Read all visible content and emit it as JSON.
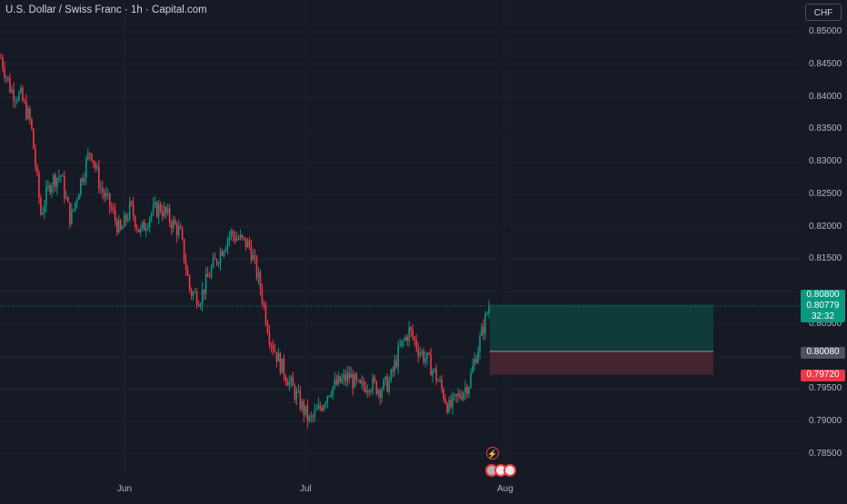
{
  "header": {
    "title": "U.S. Dollar / Swiss Franc · 1h · Capital.com"
  },
  "currency_button": {
    "label": "CHF"
  },
  "price_axis": {
    "ticks": [
      "0.85000",
      "0.84500",
      "0.84000",
      "0.83500",
      "0.83000",
      "0.82500",
      "0.82000",
      "0.81500",
      "0.80500",
      "0.80000",
      "0.79500",
      "0.79000",
      "0.78500"
    ]
  },
  "time_axis": {
    "labels": [
      "Jun",
      "Jul",
      "Aug"
    ]
  },
  "badges": {
    "take_profit": "0.80800",
    "current_price": "0.80779",
    "countdown": "32:32",
    "entry": "0.80080",
    "stop_loss": "0.79720"
  },
  "colors": {
    "background": "#161a25",
    "up": "#089981",
    "down": "#f23645",
    "profit_zone": "#0e3f3c",
    "loss_zone": "#4a2532",
    "current_price_line": "#089981"
  },
  "icons": [
    "lightning-event-icon",
    "us-flag-event-icon",
    "ch-flag-event-icon"
  ],
  "chart_data": {
    "type": "candlestick",
    "symbol": "U.S. Dollar / Swiss Franc",
    "interval": "1h",
    "ylim": [
      0.7825,
      0.852
    ],
    "x_labels": [
      "Jun",
      "Jul",
      "Aug"
    ],
    "close_path": [
      [
        "May 22",
        0.846
      ],
      [
        "May 24",
        0.841
      ],
      [
        "May 27",
        0.84
      ],
      [
        "May 28",
        0.836
      ],
      [
        "May 29",
        0.822
      ],
      [
        "May 30",
        0.827
      ],
      [
        "May 31",
        0.828
      ],
      [
        "Jun 3",
        0.821
      ],
      [
        "Jun 4",
        0.827
      ],
      [
        "Jun 5",
        0.832
      ],
      [
        "Jun 6",
        0.826
      ],
      [
        "Jun 7",
        0.823
      ],
      [
        "Jun 10",
        0.819
      ],
      [
        "Jun 11",
        0.823
      ],
      [
        "Jun 12",
        0.819
      ],
      [
        "Jun 13",
        0.822
      ],
      [
        "Jun 14",
        0.823
      ],
      [
        "Jun 17",
        0.821
      ],
      [
        "Jun 18",
        0.819
      ],
      [
        "Jun 19",
        0.81
      ],
      [
        "Jun 20",
        0.809
      ],
      [
        "Jun 21",
        0.813
      ],
      [
        "Jun 24",
        0.816
      ],
      [
        "Jun 25",
        0.819
      ],
      [
        "Jun 26",
        0.818
      ],
      [
        "Jun 27",
        0.817
      ],
      [
        "Jun 28",
        0.811
      ],
      [
        "Jul 1",
        0.803
      ],
      [
        "Jul 2",
        0.799
      ],
      [
        "Jul 3",
        0.796
      ],
      [
        "Jul 4",
        0.793
      ],
      [
        "Jul 5",
        0.79
      ],
      [
        "Jul 8",
        0.792
      ],
      [
        "Jul 9",
        0.795
      ],
      [
        "Jul 10",
        0.796
      ],
      [
        "Jul 11",
        0.797
      ],
      [
        "Jul 12",
        0.795
      ],
      [
        "Jul 15",
        0.796
      ],
      [
        "Jul 16",
        0.795
      ],
      [
        "Jul 17",
        0.796
      ],
      [
        "Jul 18",
        0.801
      ],
      [
        "Jul 19",
        0.804
      ],
      [
        "Jul 22",
        0.801
      ],
      [
        "Jul 23",
        0.799
      ],
      [
        "Jul 24",
        0.796
      ],
      [
        "Jul 25",
        0.792
      ],
      [
        "Jul 26",
        0.794
      ],
      [
        "Jul 29",
        0.796
      ],
      [
        "Jul 30",
        0.802
      ],
      [
        "Jul 31",
        0.8078
      ]
    ],
    "current_price": 0.80779,
    "position": {
      "type": "long",
      "entry": 0.8008,
      "take_profit": 0.808,
      "stop_loss": 0.7972
    }
  }
}
